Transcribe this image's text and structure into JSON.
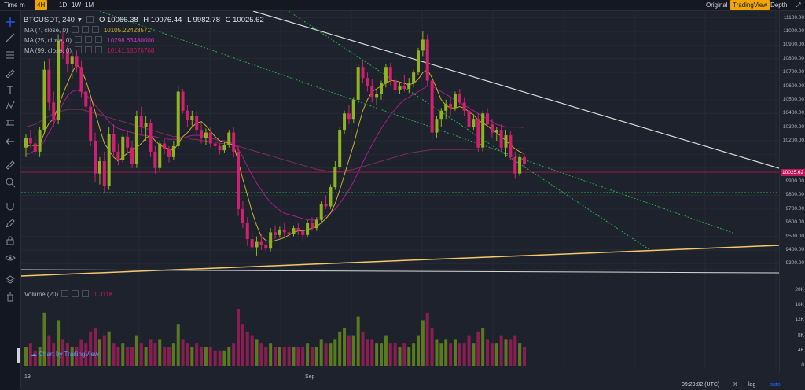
{
  "topbar": {
    "time_label": "Time",
    "m_label": "m",
    "intervals": [
      {
        "label": "4H",
        "active": true
      },
      {
        "label": "1D",
        "active": false
      },
      {
        "label": "1W",
        "active": false
      },
      {
        "label": "1M",
        "active": false
      }
    ],
    "original": "Original",
    "tradingview": "TradingView",
    "depth": "Depth"
  },
  "legend": {
    "symbol": "BTCUSDT, 240",
    "open": "O 10066.38",
    "high": "H 10076.44",
    "low": "L 9982.78",
    "close": "C 10025.62",
    "ma7_label": "MA (7, close, 0)",
    "ma7_value": "10105.22428571",
    "ma25_label": "MA (25, close, 0)",
    "ma25_value": "10298.63480000",
    "ma99_label": "MA (99, close, 0)",
    "ma99_value": "10141.18676768",
    "volume_label": "Volume (20)",
    "volume_value": "1.311K"
  },
  "colors": {
    "up": "#8fb321",
    "down": "#d0206f",
    "ma7": "#c9b02a",
    "ma25": "#a51f8a",
    "ma99": "#7a2f5c",
    "trend_white": "#d8d8d8",
    "trend_yellow": "#f6c86a",
    "green_dotted": "#27b04a"
  },
  "price_axis": [
    "11100.00",
    "11000.00",
    "10900.00",
    "10800.00",
    "10700.00",
    "10600.00",
    "10500.00",
    "10400.00",
    "10300.00",
    "10200.00",
    "10025.62",
    "9900.00",
    "9800.00",
    "9700.00",
    "9600.00",
    "9500.00",
    "9400.00",
    "9300.00"
  ],
  "current_price": "10025.62",
  "volume_axis": [
    "20K",
    "16K",
    "12K",
    "8K",
    "4K",
    "0"
  ],
  "time_axis": {
    "a": "19",
    "b": "Sep"
  },
  "bottom": {
    "clock": "09:29:02 (UTC)",
    "percent": "%",
    "log": "log",
    "auto": "auto"
  },
  "watermark": "Chart by TradingView",
  "chart_data": {
    "type": "candlestick",
    "ylim": [
      9250,
      11150
    ],
    "candles": [
      [
        10150,
        10250,
        10080,
        10220
      ],
      [
        10220,
        10280,
        10150,
        10180
      ],
      [
        10180,
        10240,
        10100,
        10120
      ],
      [
        10120,
        10300,
        10080,
        10280
      ],
      [
        10280,
        10780,
        10250,
        10720
      ],
      [
        10720,
        10800,
        10420,
        10480
      ],
      [
        10480,
        10560,
        10300,
        10350
      ],
      [
        10350,
        10980,
        10320,
        10930
      ],
      [
        10930,
        11000,
        10800,
        10850
      ],
      [
        10850,
        10900,
        10700,
        10760
      ],
      [
        10760,
        10850,
        10650,
        10820
      ],
      [
        10820,
        10860,
        10700,
        10740
      ],
      [
        10740,
        10790,
        10520,
        10560
      ],
      [
        10560,
        10620,
        10400,
        10450
      ],
      [
        10450,
        10500,
        10160,
        10200
      ],
      [
        10200,
        10260,
        9900,
        9960
      ],
      [
        9960,
        10080,
        9880,
        10050
      ],
      [
        10050,
        10120,
        9820,
        9870
      ],
      [
        9870,
        10300,
        9840,
        10250
      ],
      [
        10250,
        10320,
        10080,
        10120
      ],
      [
        10120,
        10180,
        10020,
        10060
      ],
      [
        10060,
        10250,
        10040,
        10230
      ],
      [
        10230,
        10280,
        10100,
        10150
      ],
      [
        10150,
        10200,
        10000,
        10030
      ],
      [
        10030,
        10420,
        10000,
        10380
      ],
      [
        10380,
        10450,
        10250,
        10300
      ],
      [
        10300,
        10380,
        10200,
        10330
      ],
      [
        10330,
        10360,
        10080,
        10120
      ],
      [
        10120,
        10160,
        9960,
        10000
      ],
      [
        10000,
        10200,
        9980,
        10180
      ],
      [
        10180,
        10220,
        10100,
        10140
      ],
      [
        10140,
        10160,
        10040,
        10080
      ],
      [
        10080,
        10200,
        10060,
        10160
      ],
      [
        10160,
        10600,
        10140,
        10560
      ],
      [
        10560,
        10580,
        10400,
        10420
      ],
      [
        10420,
        10460,
        10300,
        10350
      ],
      [
        10350,
        10420,
        10300,
        10380
      ],
      [
        10380,
        10420,
        10240,
        10280
      ],
      [
        10280,
        10330,
        10180,
        10220
      ],
      [
        10220,
        10290,
        10170,
        10260
      ],
      [
        10260,
        10300,
        10150,
        10180
      ],
      [
        10180,
        10200,
        10120,
        10160
      ],
      [
        10160,
        10180,
        10100,
        10130
      ],
      [
        10130,
        10190,
        10110,
        10170
      ],
      [
        10170,
        10280,
        10150,
        10260
      ],
      [
        10260,
        10300,
        10080,
        10120
      ],
      [
        10120,
        10160,
        9650,
        9700
      ],
      [
        9700,
        9760,
        9560,
        9600
      ],
      [
        9600,
        9640,
        9430,
        9480
      ],
      [
        9480,
        9530,
        9390,
        9420
      ],
      [
        9420,
        9500,
        9360,
        9460
      ],
      [
        9460,
        9520,
        9400,
        9440
      ],
      [
        9440,
        9480,
        9380,
        9410
      ],
      [
        9410,
        9560,
        9390,
        9530
      ],
      [
        9530,
        9580,
        9480,
        9510
      ],
      [
        9510,
        9570,
        9490,
        9550
      ],
      [
        9550,
        9600,
        9500,
        9530
      ],
      [
        9530,
        9570,
        9480,
        9520
      ],
      [
        9520,
        9580,
        9500,
        9560
      ],
      [
        9560,
        9600,
        9510,
        9540
      ],
      [
        9540,
        9560,
        9470,
        9510
      ],
      [
        9510,
        9620,
        9490,
        9600
      ],
      [
        9600,
        9640,
        9540,
        9560
      ],
      [
        9560,
        9640,
        9540,
        9620
      ],
      [
        9620,
        9760,
        9600,
        9740
      ],
      [
        9740,
        9800,
        9700,
        9720
      ],
      [
        9720,
        9880,
        9700,
        9860
      ],
      [
        9860,
        10050,
        9840,
        10010
      ],
      [
        10010,
        10300,
        9990,
        10280
      ],
      [
        10280,
        10420,
        10250,
        10400
      ],
      [
        10400,
        10460,
        10320,
        10360
      ],
      [
        10360,
        10520,
        10330,
        10500
      ],
      [
        10500,
        10760,
        10470,
        10740
      ],
      [
        10740,
        10780,
        10620,
        10660
      ],
      [
        10660,
        10700,
        10560,
        10600
      ],
      [
        10600,
        10650,
        10480,
        10520
      ],
      [
        10520,
        10580,
        10460,
        10540
      ],
      [
        10540,
        10640,
        10500,
        10620
      ],
      [
        10620,
        10760,
        10590,
        10740
      ],
      [
        10740,
        10770,
        10600,
        10640
      ],
      [
        10640,
        10680,
        10540,
        10570
      ],
      [
        10570,
        10620,
        10540,
        10600
      ],
      [
        10600,
        10680,
        10560,
        10580
      ],
      [
        10580,
        10660,
        10550,
        10620
      ],
      [
        10620,
        10720,
        10590,
        10700
      ],
      [
        10700,
        10880,
        10680,
        10860
      ],
      [
        10860,
        11000,
        10820,
        10940
      ],
      [
        10940,
        10980,
        10600,
        10640
      ],
      [
        10640,
        10680,
        10200,
        10260
      ],
      [
        10260,
        10380,
        10220,
        10360
      ],
      [
        10360,
        10440,
        10300,
        10420
      ],
      [
        10420,
        10500,
        10360,
        10470
      ],
      [
        10470,
        10520,
        10380,
        10440
      ],
      [
        10440,
        10560,
        10420,
        10540
      ],
      [
        10540,
        10580,
        10460,
        10480
      ],
      [
        10480,
        10520,
        10380,
        10420
      ],
      [
        10420,
        10460,
        10260,
        10300
      ],
      [
        10300,
        10380,
        10280,
        10360
      ],
      [
        10360,
        10400,
        10120,
        10150
      ],
      [
        10150,
        10420,
        10120,
        10400
      ],
      [
        10400,
        10440,
        10300,
        10320
      ],
      [
        10320,
        10360,
        10220,
        10260
      ],
      [
        10260,
        10300,
        10200,
        10280
      ],
      [
        10280,
        10320,
        10120,
        10150
      ],
      [
        10150,
        10280,
        10080,
        10240
      ],
      [
        10240,
        10270,
        10060,
        10080
      ],
      [
        10080,
        10120,
        9920,
        9960
      ],
      [
        9960,
        10100,
        9940,
        10080
      ],
      [
        10080,
        10100,
        10000,
        10030
      ]
    ],
    "volumes": [
      5,
      6,
      4,
      5,
      14,
      8,
      6,
      12,
      7,
      6,
      5,
      5,
      7,
      6,
      9,
      10,
      7,
      8,
      9,
      6,
      5,
      6,
      5,
      5,
      8,
      6,
      5,
      7,
      6,
      7,
      5,
      5,
      6,
      11,
      7,
      6,
      5,
      6,
      5,
      5,
      5,
      4,
      4,
      4,
      5,
      6,
      15,
      11,
      9,
      8,
      7,
      6,
      5,
      6,
      5,
      5,
      5,
      5,
      5,
      5,
      5,
      6,
      5,
      5,
      7,
      6,
      6,
      7,
      9,
      10,
      8,
      8,
      13,
      9,
      7,
      7,
      6,
      6,
      8,
      6,
      6,
      5,
      6,
      5,
      6,
      8,
      12,
      14,
      10,
      7,
      6,
      7,
      6,
      7,
      6,
      6,
      8,
      6,
      9,
      10,
      7,
      6,
      6,
      8,
      7,
      7,
      8,
      6,
      5
    ],
    "ma7": [
      10150,
      10170,
      10160,
      10170,
      10260,
      10330,
      10360,
      10450,
      10540,
      10620,
      10700,
      10760,
      10720,
      10640,
      10530,
      10410,
      10290,
      10180,
      10130,
      10080,
      10050,
      10080,
      10110,
      10130,
      10150,
      10180,
      10220,
      10240,
      10200,
      10170,
      10150,
      10140,
      10130,
      10180,
      10230,
      10260,
      10300,
      10330,
      10340,
      10310,
      10270,
      10230,
      10200,
      10190,
      10180,
      10170,
      10050,
      9920,
      9800,
      9680,
      9580,
      9500,
      9470,
      9460,
      9470,
      9480,
      9490,
      9510,
      9530,
      9540,
      9540,
      9550,
      9560,
      9570,
      9600,
      9630,
      9670,
      9740,
      9840,
      9950,
      10060,
      10170,
      10300,
      10420,
      10500,
      10560,
      10580,
      10600,
      10620,
      10640,
      10640,
      10630,
      10620,
      10610,
      10620,
      10650,
      10700,
      10720,
      10660,
      10580,
      10500,
      10460,
      10440,
      10440,
      10450,
      10440,
      10410,
      10390,
      10350,
      10330,
      10310,
      10280,
      10260,
      10230,
      10200,
      10170,
      10140,
      10120,
      10105
    ],
    "ma25": [
      10100,
      10110,
      10130,
      10150,
      10200,
      10260,
      10320,
      10400,
      10470,
      10530,
      10560,
      10570,
      10560,
      10540,
      10500,
      10460,
      10420,
      10380,
      10340,
      10310,
      10290,
      10280,
      10270,
      10260,
      10250,
      10240,
      10240,
      10230,
      10230,
      10220,
      10220,
      10210,
      10210,
      10210,
      10220,
      10230,
      10240,
      10240,
      10240,
      10230,
      10220,
      10210,
      10200,
      10200,
      10190,
      10180,
      10140,
      10080,
      10010,
      9950,
      9890,
      9840,
      9790,
      9750,
      9720,
      9690,
      9670,
      9660,
      9650,
      9640,
      9630,
      9620,
      9620,
      9620,
      9630,
      9650,
      9670,
      9700,
      9740,
      9790,
      9840,
      9900,
      9970,
      10040,
      10110,
      10170,
      10230,
      10290,
      10340,
      10390,
      10430,
      10470,
      10500,
      10520,
      10540,
      10560,
      10580,
      10600,
      10600,
      10580,
      10560,
      10540,
      10520,
      10500,
      10480,
      10460,
      10440,
      10420,
      10400,
      10380,
      10360,
      10340,
      10320,
      10310,
      10300,
      10300,
      10300,
      10300,
      10298
    ],
    "ma99": [
      10300,
      10310,
      10320,
      10340,
      10360,
      10380,
      10400,
      10410,
      10420,
      10430,
      10430,
      10430,
      10430,
      10420,
      10410,
      10400,
      10390,
      10380,
      10370,
      10360,
      10350,
      10340,
      10330,
      10320,
      10310,
      10300,
      10290,
      10280,
      10270,
      10260,
      10250,
      10240,
      10230,
      10230,
      10220,
      10220,
      10210,
      10210,
      10200,
      10200,
      10190,
      10190,
      10180,
      10180,
      10170,
      10170,
      10160,
      10150,
      10140,
      10130,
      10120,
      10110,
      10100,
      10090,
      10080,
      10070,
      10060,
      10050,
      10040,
      10030,
      10020,
      10010,
      10000,
      9990,
      9985,
      9980,
      9975,
      9975,
      9975,
      9980,
      9985,
      9990,
      10000,
      10010,
      10020,
      10030,
      10040,
      10050,
      10060,
      10070,
      10080,
      10090,
      10100,
      10110,
      10115,
      10120,
      10125,
      10130,
      10135,
      10135,
      10135,
      10135,
      10135,
      10135,
      10135,
      10135,
      10136,
      10137,
      10138,
      10138,
      10139,
      10139,
      10140,
      10140,
      10140,
      10141,
      10141,
      10141,
      10141
    ]
  }
}
